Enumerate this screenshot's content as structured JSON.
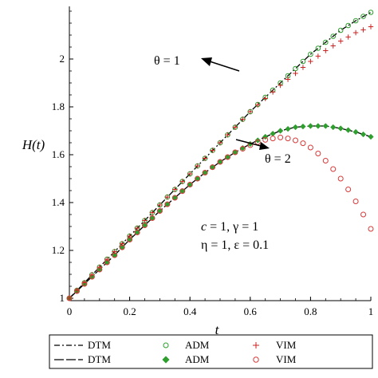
{
  "chart_data": {
    "type": "line",
    "xlabel": "t",
    "ylabel": "H(t)",
    "xlim": [
      0,
      1
    ],
    "ylim": [
      0.99,
      2.22
    ],
    "x_ticks": [
      "0",
      "0.2",
      "0.4",
      "0.6",
      "0.8",
      "1"
    ],
    "y_ticks": [
      "1",
      "1.2",
      "1.4",
      "1.6",
      "1.8",
      "2"
    ],
    "x_tick_values": [
      0,
      0.2,
      0.4,
      0.6,
      0.8,
      1
    ],
    "y_tick_values": [
      1,
      1.2,
      1.4,
      1.6,
      1.8,
      2
    ],
    "colors": {
      "dtm": "#000000",
      "adm": "#2e9e2e",
      "vim_theta1": "#cc2222",
      "vim_theta2": "#d93a3a"
    },
    "annotations": {
      "theta1": "θ = 1",
      "theta2": "θ = 2",
      "params_line1_c": "c",
      "params_line1_rest": " = 1, ",
      "params_line1_gamma": "γ",
      "params_line1_end": " = 1",
      "params_line2": "η = 1, ε = 0.1"
    },
    "legend": {
      "row1": [
        "DTM",
        "ADM",
        "VIM"
      ],
      "row2": [
        "DTM",
        "ADM",
        "VIM"
      ]
    },
    "series": [
      {
        "id": "dtm-theta1",
        "x": [
          0,
          0.05,
          0.1,
          0.15,
          0.2,
          0.25,
          0.3,
          0.35,
          0.4,
          0.45,
          0.5,
          0.55,
          0.6,
          0.65,
          0.7,
          0.75,
          0.8,
          0.85,
          0.9,
          0.95,
          1
        ],
        "values": [
          1,
          1.065,
          1.13,
          1.195,
          1.26,
          1.325,
          1.39,
          1.455,
          1.52,
          1.585,
          1.65,
          1.715,
          1.78,
          1.84,
          1.9,
          1.96,
          2.02,
          2.07,
          2.12,
          2.16,
          2.195
        ]
      },
      {
        "id": "dtm-theta2",
        "x": [
          0,
          0.05,
          0.1,
          0.15,
          0.2,
          0.25,
          0.3,
          0.35,
          0.4,
          0.45,
          0.5,
          0.55,
          0.6,
          0.65,
          0.7,
          0.75,
          0.8,
          0.85,
          0.9,
          0.95,
          1
        ],
        "values": [
          1,
          1.06,
          1.12,
          1.18,
          1.245,
          1.305,
          1.365,
          1.42,
          1.475,
          1.525,
          1.57,
          1.61,
          1.645,
          1.675,
          1.7,
          1.715,
          1.72,
          1.72,
          1.71,
          1.695,
          1.675
        ]
      },
      {
        "id": "adm-theta1",
        "x": [
          0,
          0.025,
          0.05,
          0.075,
          0.1,
          0.125,
          0.15,
          0.175,
          0.2,
          0.225,
          0.25,
          0.275,
          0.3,
          0.325,
          0.35,
          0.375,
          0.4,
          0.425,
          0.45,
          0.475,
          0.5,
          0.525,
          0.55,
          0.575,
          0.6,
          0.625,
          0.65,
          0.675,
          0.7,
          0.725,
          0.75,
          0.775,
          0.8,
          0.825,
          0.85,
          0.875,
          0.9,
          0.925,
          0.95,
          0.975,
          1
        ],
        "values": [
          1,
          1.033,
          1.065,
          1.098,
          1.13,
          1.163,
          1.195,
          1.228,
          1.26,
          1.293,
          1.325,
          1.358,
          1.39,
          1.423,
          1.455,
          1.488,
          1.52,
          1.553,
          1.585,
          1.618,
          1.65,
          1.683,
          1.715,
          1.748,
          1.78,
          1.81,
          1.84,
          1.87,
          1.9,
          1.93,
          1.96,
          1.99,
          2.02,
          2.045,
          2.07,
          2.095,
          2.12,
          2.14,
          2.16,
          2.178,
          2.195
        ]
      },
      {
        "id": "adm-theta2",
        "x": [
          0,
          0.025,
          0.05,
          0.075,
          0.1,
          0.125,
          0.15,
          0.175,
          0.2,
          0.225,
          0.25,
          0.275,
          0.3,
          0.325,
          0.35,
          0.375,
          0.4,
          0.425,
          0.45,
          0.475,
          0.5,
          0.525,
          0.55,
          0.575,
          0.6,
          0.625,
          0.65,
          0.675,
          0.7,
          0.725,
          0.75,
          0.775,
          0.8,
          0.825,
          0.85,
          0.875,
          0.9,
          0.925,
          0.95,
          0.975,
          1
        ],
        "values": [
          1,
          1.03,
          1.06,
          1.09,
          1.12,
          1.15,
          1.18,
          1.213,
          1.245,
          1.275,
          1.305,
          1.335,
          1.365,
          1.393,
          1.42,
          1.448,
          1.475,
          1.5,
          1.525,
          1.548,
          1.57,
          1.59,
          1.61,
          1.628,
          1.645,
          1.66,
          1.675,
          1.688,
          1.7,
          1.708,
          1.715,
          1.718,
          1.72,
          1.72,
          1.72,
          1.715,
          1.71,
          1.703,
          1.695,
          1.685,
          1.675
        ]
      },
      {
        "id": "vim-theta1",
        "x": [
          0,
          0.025,
          0.05,
          0.075,
          0.1,
          0.125,
          0.15,
          0.175,
          0.2,
          0.225,
          0.25,
          0.275,
          0.3,
          0.325,
          0.35,
          0.375,
          0.4,
          0.425,
          0.45,
          0.475,
          0.5,
          0.525,
          0.55,
          0.575,
          0.6,
          0.625,
          0.65,
          0.675,
          0.7,
          0.725,
          0.75,
          0.775,
          0.8,
          0.825,
          0.85,
          0.875,
          0.9,
          0.925,
          0.95,
          0.975,
          1
        ],
        "values": [
          1,
          1.033,
          1.065,
          1.098,
          1.13,
          1.163,
          1.195,
          1.228,
          1.26,
          1.293,
          1.325,
          1.358,
          1.39,
          1.423,
          1.455,
          1.488,
          1.52,
          1.553,
          1.585,
          1.618,
          1.65,
          1.683,
          1.715,
          1.748,
          1.78,
          1.808,
          1.835,
          1.862,
          1.89,
          1.915,
          1.94,
          1.965,
          1.99,
          2.012,
          2.035,
          2.055,
          2.075,
          2.092,
          2.11,
          2.122,
          2.135
        ]
      },
      {
        "id": "vim-theta2",
        "x": [
          0,
          0.025,
          0.05,
          0.075,
          0.1,
          0.125,
          0.15,
          0.175,
          0.2,
          0.225,
          0.25,
          0.275,
          0.3,
          0.325,
          0.35,
          0.375,
          0.4,
          0.425,
          0.45,
          0.475,
          0.5,
          0.525,
          0.55,
          0.575,
          0.6,
          0.625,
          0.65,
          0.675,
          0.7,
          0.725,
          0.75,
          0.775,
          0.8,
          0.825,
          0.85,
          0.875,
          0.9,
          0.925,
          0.95,
          0.975,
          1
        ],
        "values": [
          1,
          1.03,
          1.06,
          1.09,
          1.12,
          1.15,
          1.18,
          1.213,
          1.245,
          1.275,
          1.305,
          1.335,
          1.365,
          1.393,
          1.42,
          1.448,
          1.475,
          1.5,
          1.525,
          1.548,
          1.57,
          1.59,
          1.61,
          1.625,
          1.64,
          1.652,
          1.662,
          1.668,
          1.672,
          1.668,
          1.66,
          1.648,
          1.63,
          1.605,
          1.575,
          1.54,
          1.5,
          1.455,
          1.405,
          1.35,
          1.29
        ]
      }
    ]
  }
}
